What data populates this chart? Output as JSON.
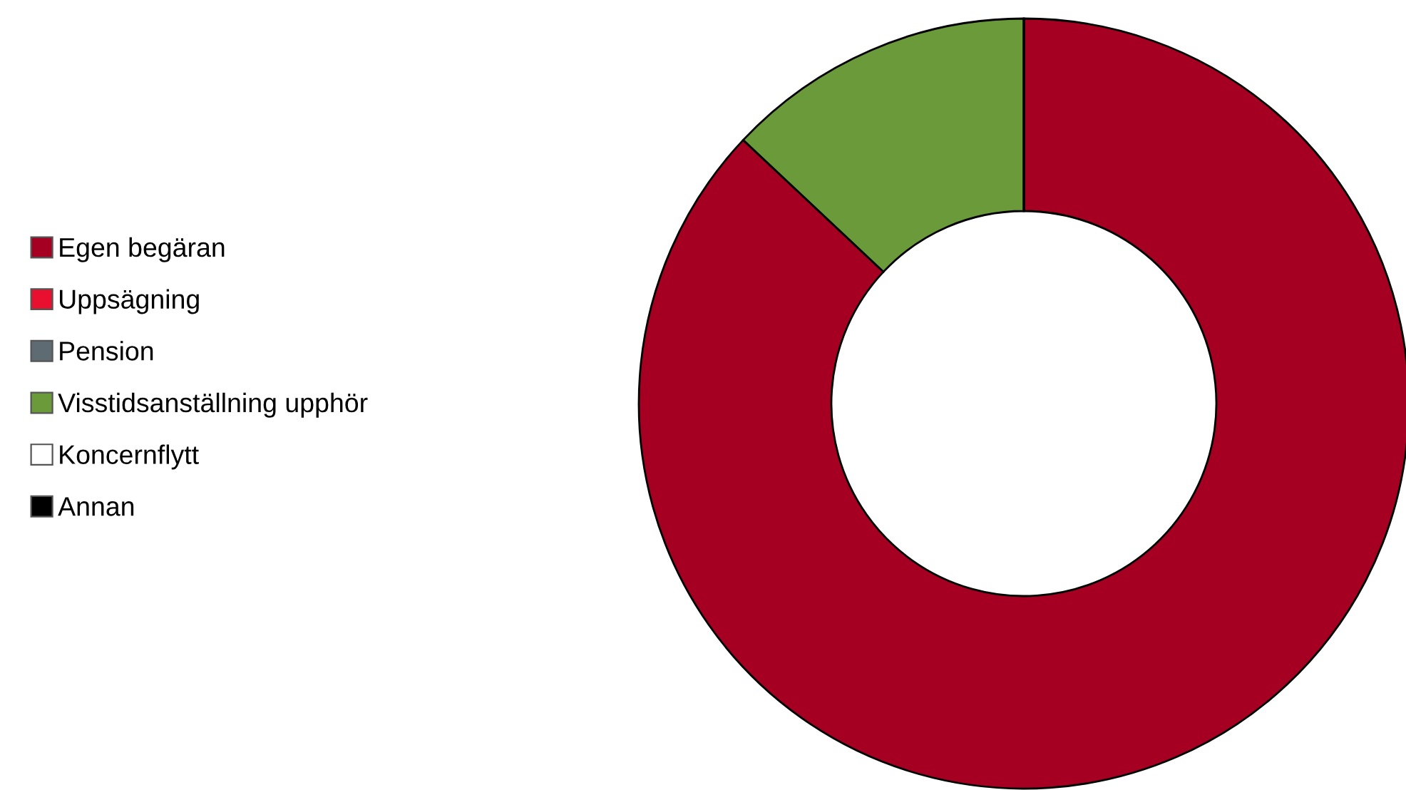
{
  "chart_data": {
    "type": "donut",
    "categories": [
      "Egen begäran",
      "Uppsägning",
      "Pension",
      "Visstidsanställning upphör",
      "Koncernflytt",
      "Annan"
    ],
    "values": [
      87,
      0,
      0,
      13,
      0,
      0
    ],
    "colors": [
      "#a50021",
      "#e8102e",
      "#5f6b73",
      "#6a9a3a",
      "#ffffff",
      "#000000"
    ],
    "legend": "left"
  }
}
